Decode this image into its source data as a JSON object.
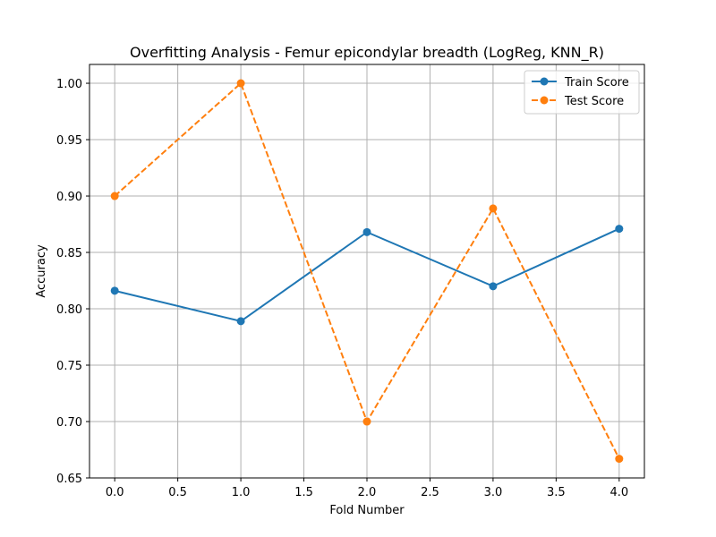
{
  "chart_data": {
    "type": "line",
    "title": "Overfitting Analysis - Femur epicondylar breadth (LogReg, KNN_R)",
    "xlabel": "Fold Number",
    "ylabel": "Accuracy",
    "xlim": [
      -0.2,
      4.2
    ],
    "ylim": [
      0.65,
      1.0167
    ],
    "xticks": [
      0.0,
      0.5,
      1.0,
      1.5,
      2.0,
      2.5,
      3.0,
      3.5,
      4.0
    ],
    "xtick_labels": [
      "0.0",
      "0.5",
      "1.0",
      "1.5",
      "2.0",
      "2.5",
      "3.0",
      "3.5",
      "4.0"
    ],
    "yticks": [
      0.65,
      0.7,
      0.75,
      0.8,
      0.85,
      0.9,
      0.95,
      1.0
    ],
    "ytick_labels": [
      "0.65",
      "0.70",
      "0.75",
      "0.80",
      "0.85",
      "0.90",
      "0.95",
      "1.00"
    ],
    "grid": true,
    "legend_position": "top-right",
    "x": [
      0,
      1,
      2,
      3,
      4
    ],
    "series": [
      {
        "name": "Train Score",
        "values": [
          0.816,
          0.789,
          0.868,
          0.82,
          0.871
        ],
        "color": "#1f77b4",
        "line_style": "solid",
        "marker": "circle"
      },
      {
        "name": "Test Score",
        "values": [
          0.9,
          1.0,
          0.7,
          0.889,
          0.667
        ],
        "color": "#ff7f0e",
        "line_style": "dashed",
        "marker": "circle"
      }
    ]
  }
}
